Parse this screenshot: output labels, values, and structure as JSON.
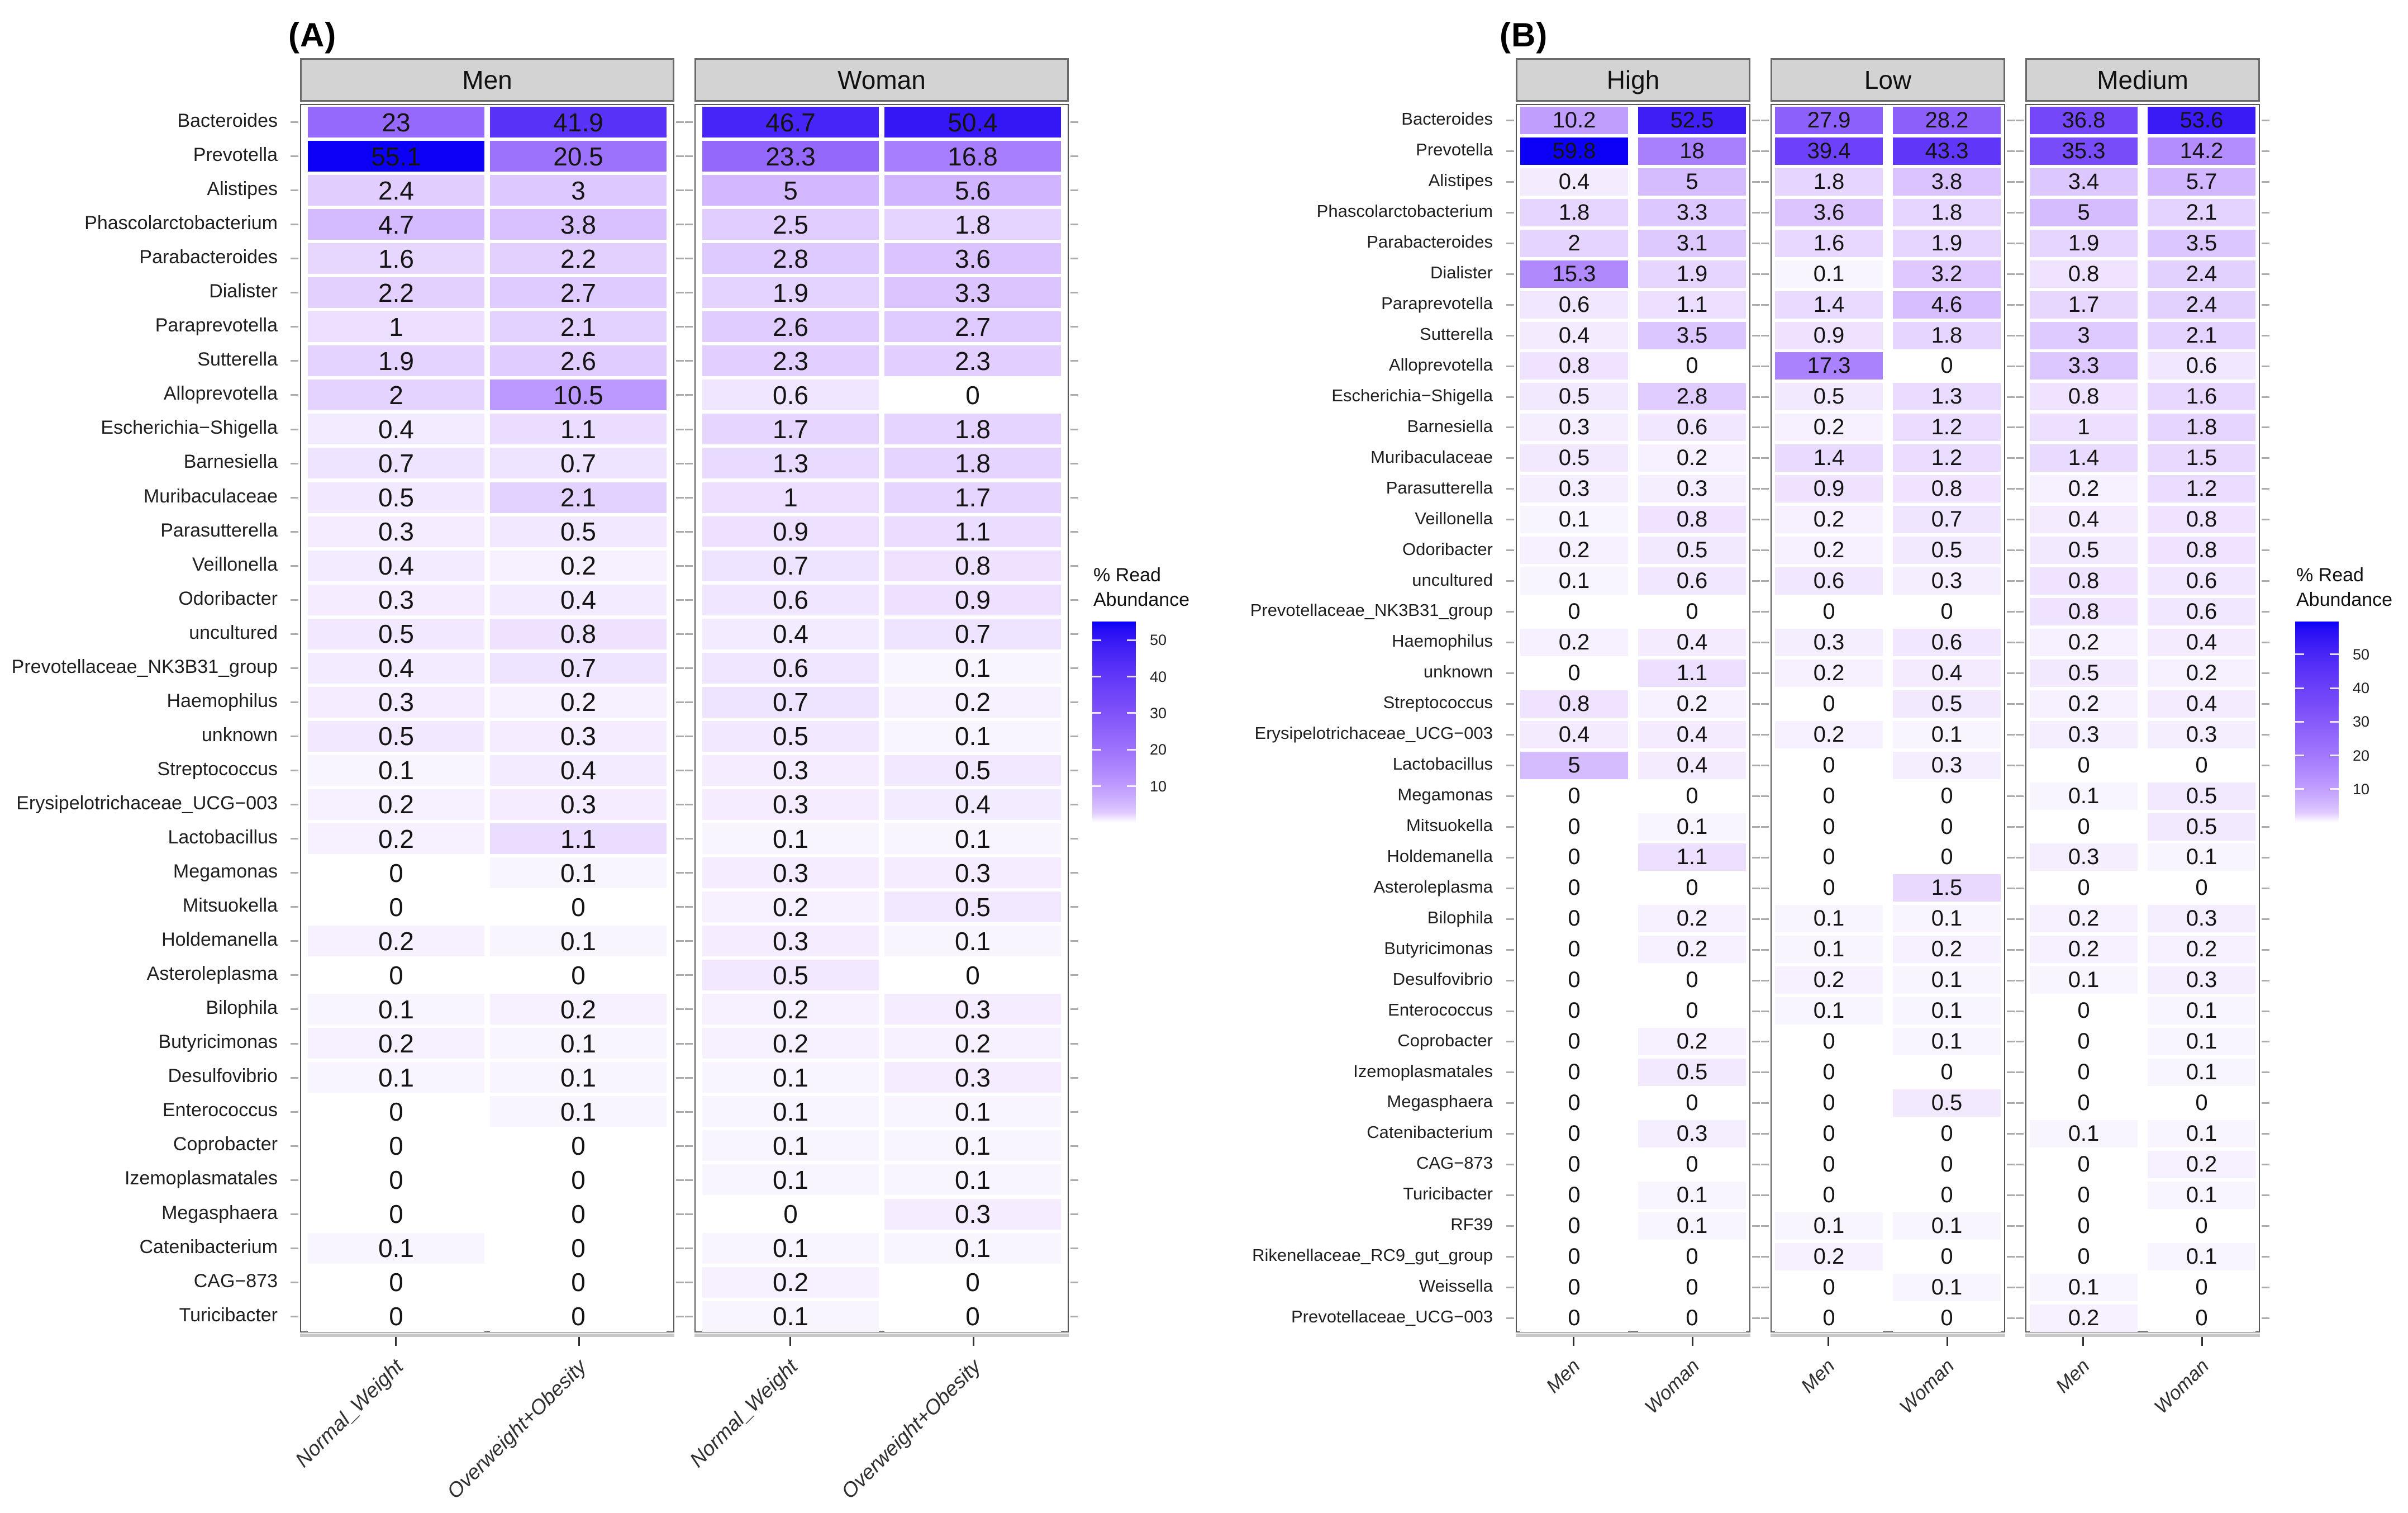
{
  "colors": {
    "gradient_low": "#ffffff",
    "gradient_high": "#0b00f5",
    "strip_bg": "#d3d3d3",
    "strip_border": "#6a6a6a",
    "panel_border": "#575757",
    "axis_line": "#c7c7c7",
    "row_tick": "#ababab",
    "text": "#141414"
  },
  "chart_data": [
    {
      "type": "heatmap",
      "panel": "A",
      "label": "(A)",
      "vmax": 55.1,
      "color_scale": {
        "low": "#ffffff",
        "high": "#0b00f5",
        "transform": "sqrt"
      },
      "legend": {
        "title": "% Read\nAbundance",
        "ticks": [
          "50",
          "40",
          "30",
          "20",
          "10"
        ],
        "position": "right"
      },
      "row_labels": [
        "Bacteroides",
        "Prevotella",
        "Alistipes",
        "Phascolarctobacterium",
        "Parabacteroides",
        "Dialister",
        "Paraprevotella",
        "Sutterella",
        "Alloprevotella",
        "Escherichia−Shigella",
        "Barnesiella",
        "Muribaculaceae",
        "Parasutterella",
        "Veillonella",
        "Odoribacter",
        "uncultured",
        "Prevotellaceae_NK3B31_group",
        "Haemophilus",
        "unknown",
        "Streptococcus",
        "Erysipelotrichaceae_UCG−003",
        "Lactobacillus",
        "Megamonas",
        "Mitsuokella",
        "Holdemanella",
        "Asteroleplasma",
        "Bilophila",
        "Butyricimonas",
        "Desulfovibrio",
        "Enterococcus",
        "Coprobacter",
        "Izemoplasmatales",
        "Megasphaera",
        "Catenibacterium",
        "CAG−873",
        "Turicibacter"
      ],
      "facets": [
        {
          "title": "Men",
          "x_labels": [
            "Normal_Weight",
            "Overweight+Obesity"
          ],
          "values": [
            [
              "23",
              "41.9"
            ],
            [
              "55.1",
              "20.5"
            ],
            [
              "2.4",
              "3"
            ],
            [
              "4.7",
              "3.8"
            ],
            [
              "1.6",
              "2.2"
            ],
            [
              "2.2",
              "2.7"
            ],
            [
              "1",
              "2.1"
            ],
            [
              "1.9",
              "2.6"
            ],
            [
              "2",
              "10.5"
            ],
            [
              "0.4",
              "1.1"
            ],
            [
              "0.7",
              "0.7"
            ],
            [
              "0.5",
              "2.1"
            ],
            [
              "0.3",
              "0.5"
            ],
            [
              "0.4",
              "0.2"
            ],
            [
              "0.3",
              "0.4"
            ],
            [
              "0.5",
              "0.8"
            ],
            [
              "0.4",
              "0.7"
            ],
            [
              "0.3",
              "0.2"
            ],
            [
              "0.5",
              "0.3"
            ],
            [
              "0.1",
              "0.4"
            ],
            [
              "0.2",
              "0.3"
            ],
            [
              "0.2",
              "1.1"
            ],
            [
              "0",
              "0.1"
            ],
            [
              "0",
              "0"
            ],
            [
              "0.2",
              "0.1"
            ],
            [
              "0",
              "0"
            ],
            [
              "0.1",
              "0.2"
            ],
            [
              "0.2",
              "0.1"
            ],
            [
              "0.1",
              "0.1"
            ],
            [
              "0",
              "0.1"
            ],
            [
              "0",
              "0"
            ],
            [
              "0",
              "0"
            ],
            [
              "0",
              "0"
            ],
            [
              "0.1",
              "0"
            ],
            [
              "0",
              "0"
            ],
            [
              "0",
              "0"
            ]
          ]
        },
        {
          "title": "Woman",
          "x_labels": [
            "Normal_Weight",
            "Overweight+Obesity"
          ],
          "values": [
            [
              "46.7",
              "50.4"
            ],
            [
              "23.3",
              "16.8"
            ],
            [
              "5",
              "5.6"
            ],
            [
              "2.5",
              "1.8"
            ],
            [
              "2.8",
              "3.6"
            ],
            [
              "1.9",
              "3.3"
            ],
            [
              "2.6",
              "2.7"
            ],
            [
              "2.3",
              "2.3"
            ],
            [
              "0.6",
              "0"
            ],
            [
              "1.7",
              "1.8"
            ],
            [
              "1.3",
              "1.8"
            ],
            [
              "1",
              "1.7"
            ],
            [
              "0.9",
              "1.1"
            ],
            [
              "0.7",
              "0.8"
            ],
            [
              "0.6",
              "0.9"
            ],
            [
              "0.4",
              "0.7"
            ],
            [
              "0.6",
              "0.1"
            ],
            [
              "0.7",
              "0.2"
            ],
            [
              "0.5",
              "0.1"
            ],
            [
              "0.3",
              "0.5"
            ],
            [
              "0.3",
              "0.4"
            ],
            [
              "0.1",
              "0.1"
            ],
            [
              "0.3",
              "0.3"
            ],
            [
              "0.2",
              "0.5"
            ],
            [
              "0.3",
              "0.1"
            ],
            [
              "0.5",
              "0"
            ],
            [
              "0.2",
              "0.3"
            ],
            [
              "0.2",
              "0.2"
            ],
            [
              "0.1",
              "0.3"
            ],
            [
              "0.1",
              "0.1"
            ],
            [
              "0.1",
              "0.1"
            ],
            [
              "0.1",
              "0.1"
            ],
            [
              "0",
              "0.3"
            ],
            [
              "0.1",
              "0.1"
            ],
            [
              "0.2",
              "0"
            ],
            [
              "0.1",
              "0"
            ]
          ]
        }
      ]
    },
    {
      "type": "heatmap",
      "panel": "B",
      "label": "(B)",
      "vmax": 59.8,
      "color_scale": {
        "low": "#ffffff",
        "high": "#0b00f5",
        "transform": "sqrt"
      },
      "legend": {
        "title": "% Read\nAbundance",
        "ticks": [
          "50",
          "40",
          "30",
          "20",
          "10"
        ],
        "position": "right"
      },
      "row_labels": [
        "Bacteroides",
        "Prevotella",
        "Alistipes",
        "Phascolarctobacterium",
        "Parabacteroides",
        "Dialister",
        "Paraprevotella",
        "Sutterella",
        "Alloprevotella",
        "Escherichia−Shigella",
        "Barnesiella",
        "Muribaculaceae",
        "Parasutterella",
        "Veillonella",
        "Odoribacter",
        "uncultured",
        "Prevotellaceae_NK3B31_group",
        "Haemophilus",
        "unknown",
        "Streptococcus",
        "Erysipelotrichaceae_UCG−003",
        "Lactobacillus",
        "Megamonas",
        "Mitsuokella",
        "Holdemanella",
        "Asteroleplasma",
        "Bilophila",
        "Butyricimonas",
        "Desulfovibrio",
        "Enterococcus",
        "Coprobacter",
        "Izemoplasmatales",
        "Megasphaera",
        "Catenibacterium",
        "CAG−873",
        "Turicibacter",
        "RF39",
        "Rikenellaceae_RC9_gut_group",
        "Weissella",
        "Prevotellaceae_UCG−003"
      ],
      "facets": [
        {
          "title": "High",
          "x_labels": [
            "Men",
            "Woman"
          ],
          "values": [
            [
              "10.2",
              "52.5"
            ],
            [
              "59.8",
              "18"
            ],
            [
              "0.4",
              "5"
            ],
            [
              "1.8",
              "3.3"
            ],
            [
              "2",
              "3.1"
            ],
            [
              "15.3",
              "1.9"
            ],
            [
              "0.6",
              "1.1"
            ],
            [
              "0.4",
              "3.5"
            ],
            [
              "0.8",
              "0"
            ],
            [
              "0.5",
              "2.8"
            ],
            [
              "0.3",
              "0.6"
            ],
            [
              "0.5",
              "0.2"
            ],
            [
              "0.3",
              "0.3"
            ],
            [
              "0.1",
              "0.8"
            ],
            [
              "0.2",
              "0.5"
            ],
            [
              "0.1",
              "0.6"
            ],
            [
              "0",
              "0"
            ],
            [
              "0.2",
              "0.4"
            ],
            [
              "0",
              "1.1"
            ],
            [
              "0.8",
              "0.2"
            ],
            [
              "0.4",
              "0.4"
            ],
            [
              "5",
              "0.4"
            ],
            [
              "0",
              "0"
            ],
            [
              "0",
              "0.1"
            ],
            [
              "0",
              "1.1"
            ],
            [
              "0",
              "0"
            ],
            [
              "0",
              "0.2"
            ],
            [
              "0",
              "0.2"
            ],
            [
              "0",
              "0"
            ],
            [
              "0",
              "0"
            ],
            [
              "0",
              "0.2"
            ],
            [
              "0",
              "0.5"
            ],
            [
              "0",
              "0"
            ],
            [
              "0",
              "0.3"
            ],
            [
              "0",
              "0"
            ],
            [
              "0",
              "0.1"
            ],
            [
              "0",
              "0.1"
            ],
            [
              "0",
              "0"
            ],
            [
              "0",
              "0"
            ],
            [
              "0",
              "0"
            ]
          ]
        },
        {
          "title": "Low",
          "x_labels": [
            "Men",
            "Woman"
          ],
          "values": [
            [
              "27.9",
              "28.2"
            ],
            [
              "39.4",
              "43.3"
            ],
            [
              "1.8",
              "3.8"
            ],
            [
              "3.6",
              "1.8"
            ],
            [
              "1.6",
              "1.9"
            ],
            [
              "0.1",
              "3.2"
            ],
            [
              "1.4",
              "4.6"
            ],
            [
              "0.9",
              "1.8"
            ],
            [
              "17.3",
              "0"
            ],
            [
              "0.5",
              "1.3"
            ],
            [
              "0.2",
              "1.2"
            ],
            [
              "1.4",
              "1.2"
            ],
            [
              "0.9",
              "0.8"
            ],
            [
              "0.2",
              "0.7"
            ],
            [
              "0.2",
              "0.5"
            ],
            [
              "0.6",
              "0.3"
            ],
            [
              "0",
              "0"
            ],
            [
              "0.3",
              "0.6"
            ],
            [
              "0.2",
              "0.4"
            ],
            [
              "0",
              "0.5"
            ],
            [
              "0.2",
              "0.1"
            ],
            [
              "0",
              "0.3"
            ],
            [
              "0",
              "0"
            ],
            [
              "0",
              "0"
            ],
            [
              "0",
              "0"
            ],
            [
              "0",
              "1.5"
            ],
            [
              "0.1",
              "0.1"
            ],
            [
              "0.1",
              "0.2"
            ],
            [
              "0.2",
              "0.1"
            ],
            [
              "0.1",
              "0.1"
            ],
            [
              "0",
              "0.1"
            ],
            [
              "0",
              "0"
            ],
            [
              "0",
              "0.5"
            ],
            [
              "0",
              "0"
            ],
            [
              "0",
              "0"
            ],
            [
              "0",
              "0"
            ],
            [
              "0.1",
              "0.1"
            ],
            [
              "0.2",
              "0"
            ],
            [
              "0",
              "0.1"
            ],
            [
              "0",
              "0"
            ]
          ]
        },
        {
          "title": "Medium",
          "x_labels": [
            "Men",
            "Woman"
          ],
          "values": [
            [
              "36.8",
              "53.6"
            ],
            [
              "35.3",
              "14.2"
            ],
            [
              "3.4",
              "5.7"
            ],
            [
              "5",
              "2.1"
            ],
            [
              "1.9",
              "3.5"
            ],
            [
              "0.8",
              "2.4"
            ],
            [
              "1.7",
              "2.4"
            ],
            [
              "3",
              "2.1"
            ],
            [
              "3.3",
              "0.6"
            ],
            [
              "0.8",
              "1.6"
            ],
            [
              "1",
              "1.8"
            ],
            [
              "1.4",
              "1.5"
            ],
            [
              "0.2",
              "1.2"
            ],
            [
              "0.4",
              "0.8"
            ],
            [
              "0.5",
              "0.8"
            ],
            [
              "0.8",
              "0.6"
            ],
            [
              "0.8",
              "0.6"
            ],
            [
              "0.2",
              "0.4"
            ],
            [
              "0.5",
              "0.2"
            ],
            [
              "0.2",
              "0.4"
            ],
            [
              "0.3",
              "0.3"
            ],
            [
              "0",
              "0"
            ],
            [
              "0.1",
              "0.5"
            ],
            [
              "0",
              "0.5"
            ],
            [
              "0.3",
              "0.1"
            ],
            [
              "0",
              "0"
            ],
            [
              "0.2",
              "0.3"
            ],
            [
              "0.2",
              "0.2"
            ],
            [
              "0.1",
              "0.3"
            ],
            [
              "0",
              "0.1"
            ],
            [
              "0",
              "0.1"
            ],
            [
              "0",
              "0.1"
            ],
            [
              "0",
              "0"
            ],
            [
              "0.1",
              "0.1"
            ],
            [
              "0",
              "0.2"
            ],
            [
              "0",
              "0.1"
            ],
            [
              "0",
              "0"
            ],
            [
              "0",
              "0.1"
            ],
            [
              "0.1",
              "0"
            ],
            [
              "0.2",
              "0"
            ]
          ]
        }
      ]
    }
  ]
}
